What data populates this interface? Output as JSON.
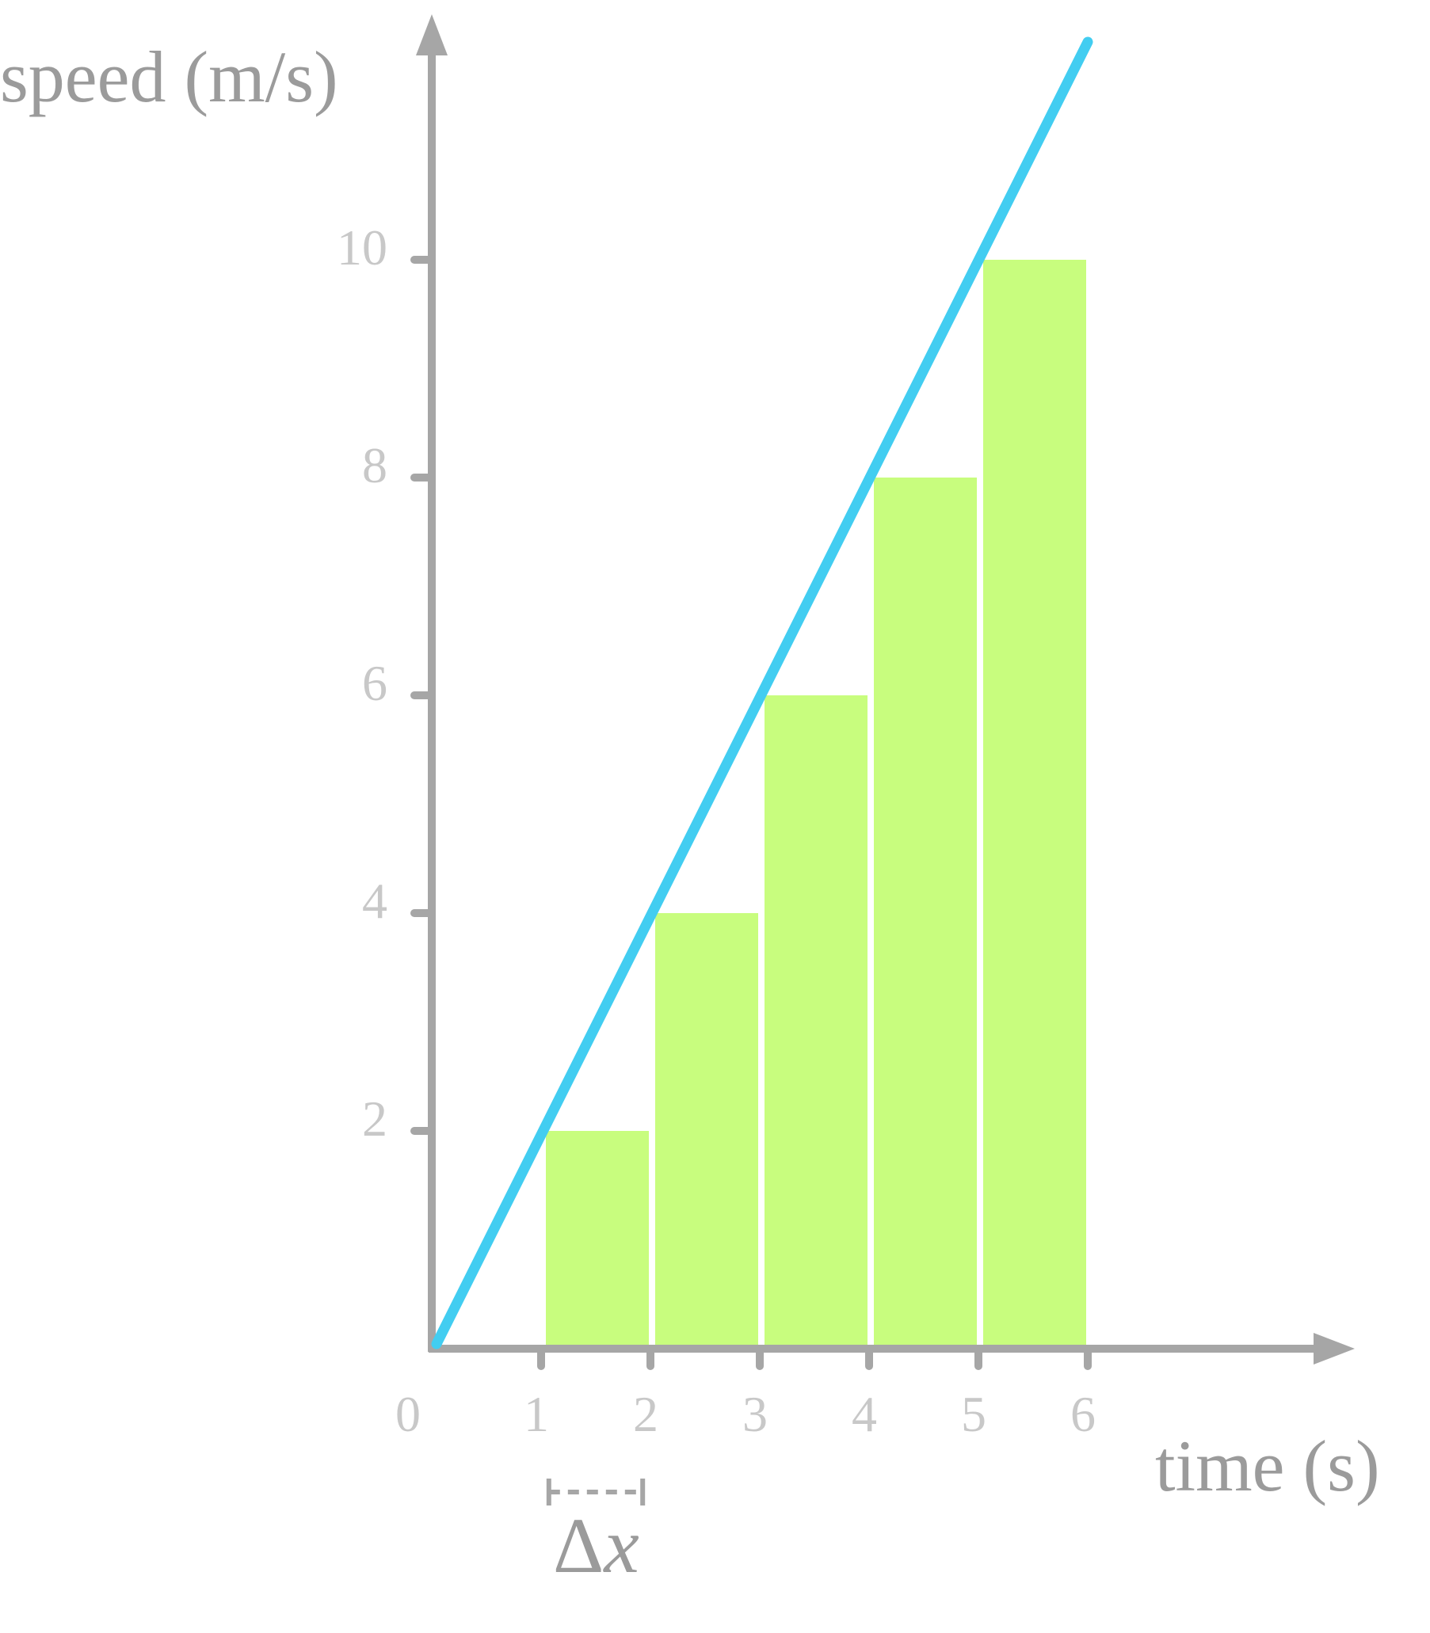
{
  "chart_data": {
    "type": "bar",
    "title": "",
    "xlabel": "time (s)",
    "ylabel": "speed (m/s)",
    "xlim": [
      0,
      8.5
    ],
    "ylim": [
      0,
      12
    ],
    "x_ticks": [
      "0",
      "1",
      "2",
      "3",
      "4",
      "5",
      "6"
    ],
    "y_ticks": [
      "2",
      "4",
      "6",
      "8",
      "10"
    ],
    "bars": [
      {
        "x_start": 1,
        "x_end": 2,
        "value": 2
      },
      {
        "x_start": 2,
        "x_end": 3,
        "value": 4
      },
      {
        "x_start": 3,
        "x_end": 4,
        "value": 6
      },
      {
        "x_start": 4,
        "x_end": 5,
        "value": 8
      },
      {
        "x_start": 5,
        "x_end": 6,
        "value": 10
      }
    ],
    "line": {
      "points": [
        [
          0,
          0
        ],
        [
          6,
          12
        ]
      ]
    },
    "annotation": {
      "label_symbol": "Δ",
      "label_var": "x",
      "x_start": 1.1,
      "x_end": 1.9
    },
    "colors": {
      "axis": "#a6a6a6",
      "tick_label": "#c8c8c8",
      "axis_title": "#9b9b9b",
      "bar_fill": "#c8fd7e",
      "line": "#42cdf1",
      "background": "#ffffff"
    },
    "grid": false,
    "legend": "none"
  }
}
